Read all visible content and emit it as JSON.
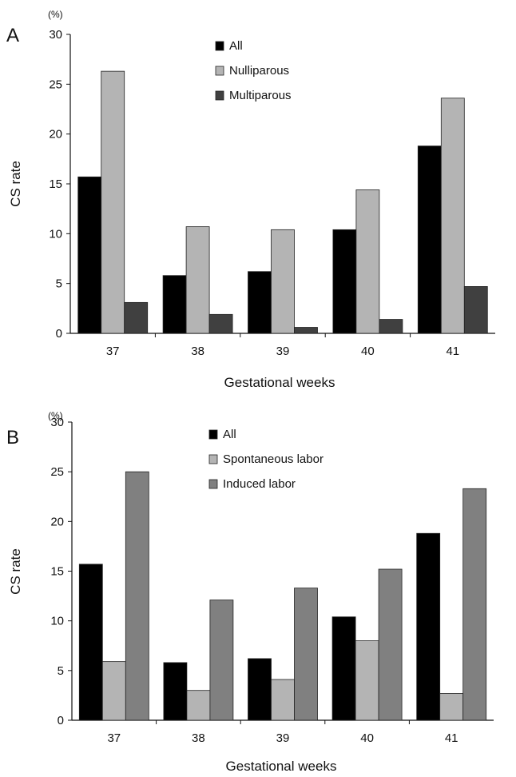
{
  "chart_data": [
    {
      "panel": "A",
      "type": "bar",
      "unit": "(%)",
      "ylabel": "CS rate",
      "xlabel": "Gestational weeks",
      "ylim": [
        0,
        30
      ],
      "yticks": [
        0,
        5,
        10,
        15,
        20,
        25,
        30
      ],
      "categories": [
        "37",
        "38",
        "39",
        "40",
        "41"
      ],
      "legend_position": "top-center",
      "series": [
        {
          "name": "All",
          "color": "#000000",
          "values": [
            15.7,
            5.8,
            6.2,
            10.4,
            18.8
          ]
        },
        {
          "name": "Nulliparous",
          "color": "#b4b4b4",
          "values": [
            26.3,
            10.7,
            10.4,
            14.4,
            23.6
          ]
        },
        {
          "name": "Multiparous",
          "color": "#404040",
          "values": [
            3.1,
            1.9,
            0.6,
            1.4,
            4.7
          ]
        }
      ]
    },
    {
      "panel": "B",
      "type": "bar",
      "unit": "(%)",
      "ylabel": "CS rate",
      "xlabel": "Gestational weeks",
      "ylim": [
        0,
        30
      ],
      "yticks": [
        0,
        5,
        10,
        15,
        20,
        25,
        30
      ],
      "categories": [
        "37",
        "38",
        "39",
        "40",
        "41"
      ],
      "legend_position": "top-center",
      "series": [
        {
          "name": "All",
          "color": "#000000",
          "values": [
            15.7,
            5.8,
            6.2,
            10.4,
            18.8
          ]
        },
        {
          "name": "Spontaneous labor",
          "color": "#b4b4b4",
          "values": [
            5.9,
            3.0,
            4.1,
            8.0,
            2.7
          ]
        },
        {
          "name": "Induced labor",
          "color": "#808080",
          "values": [
            25.0,
            12.1,
            13.3,
            15.2,
            23.3
          ]
        }
      ]
    }
  ]
}
